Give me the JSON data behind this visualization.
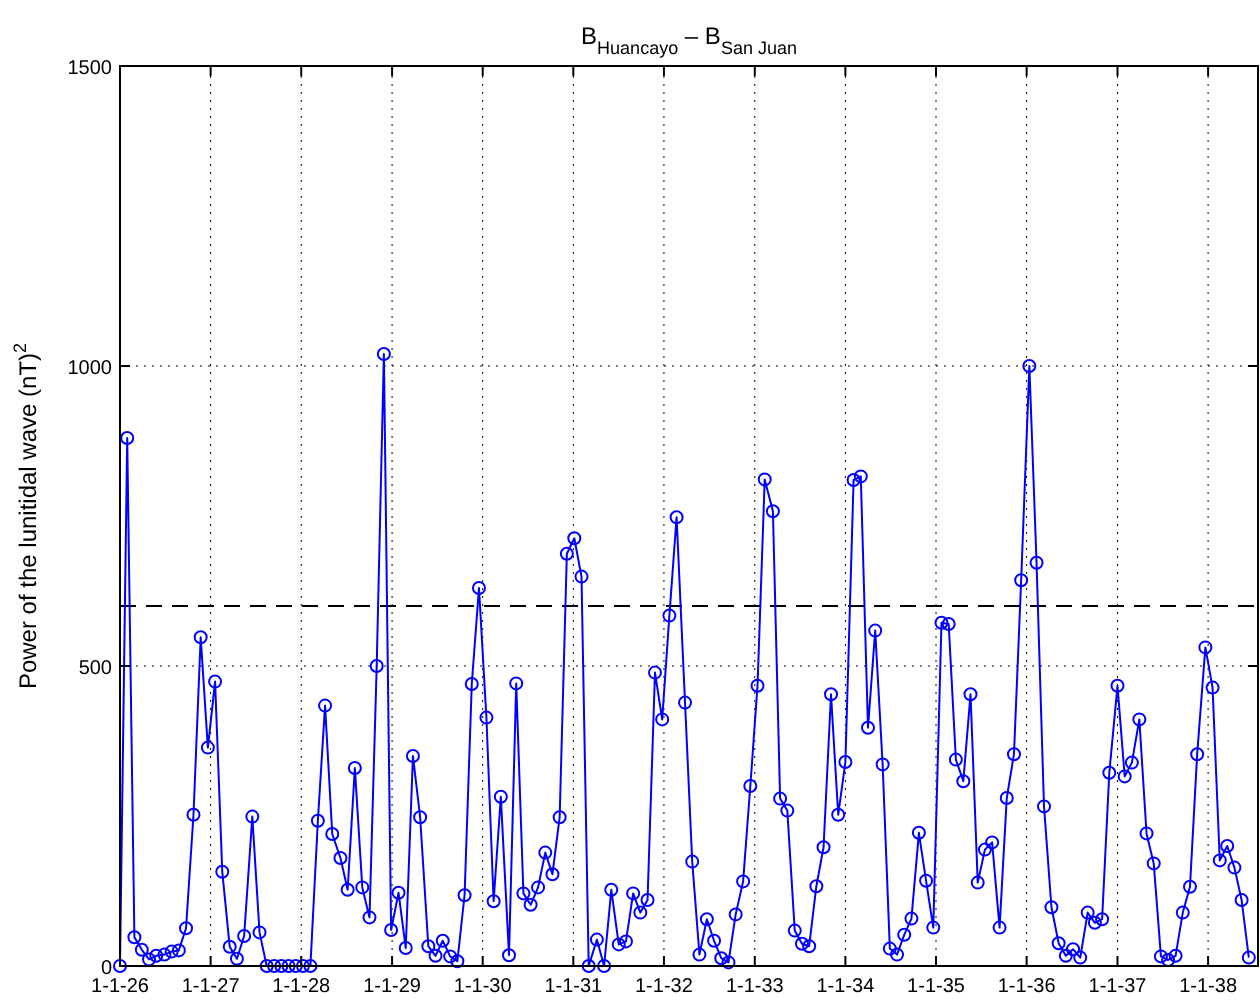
{
  "chart_data": {
    "type": "line",
    "title": "B$_{Huancayo}$ – B$_{San Juan}$",
    "ylabel": "Power of the lunitidal wave (nT)$^{2}$",
    "x": [
      "1926-01-01",
      "1926-01-30",
      "1926-02-28",
      "1926-03-30",
      "1926-04-28",
      "1926-05-27",
      "1926-06-29",
      "1926-07-28",
      "1926-08-26",
      "1926-09-24",
      "1926-10-24",
      "1926-11-22",
      "1926-12-21",
      "1927-01-19",
      "1927-02-17",
      "1927-03-19",
      "1927-04-17",
      "1927-05-16",
      "1927-06-18",
      "1927-07-17",
      "1927-08-15",
      "1927-09-14",
      "1927-10-13",
      "1927-11-11",
      "1927-12-10",
      "1928-01-08",
      "1928-02-07",
      "1928-03-08",
      "1928-04-06",
      "1928-05-05",
      "1928-06-07",
      "1928-07-06",
      "1928-08-04",
      "1928-09-03",
      "1928-10-02",
      "1928-10-31",
      "1928-11-29",
      "1928-12-28",
      "1929-01-27",
      "1929-02-25",
      "1929-03-26",
      "1929-04-24",
      "1929-05-27",
      "1929-06-25",
      "1929-07-24",
      "1929-08-23",
      "1929-09-21",
      "1929-10-20",
      "1929-11-18",
      "1929-12-17",
      "1930-01-16",
      "1930-02-14",
      "1930-03-15",
      "1930-04-17",
      "1930-05-16",
      "1930-06-14",
      "1930-07-13",
      "1930-08-12",
      "1930-09-10",
      "1930-10-09",
      "1930-11-07",
      "1930-12-06",
      "1931-01-05",
      "1931-02-03",
      "1931-03-04",
      "1931-04-06",
      "1931-05-05",
      "1931-06-03",
      "1931-07-03",
      "1931-08-01",
      "1931-08-30",
      "1931-09-28",
      "1931-10-27",
      "1931-11-26",
      "1931-12-25",
      "1932-01-23",
      "1932-02-21",
      "1932-03-26",
      "1932-04-24",
      "1932-05-23",
      "1932-06-22",
      "1932-07-21",
      "1932-08-19",
      "1932-09-17",
      "1932-10-16",
      "1932-11-15",
      "1932-12-14",
      "1933-01-12",
      "1933-02-10",
      "1933-03-15",
      "1933-04-13",
      "1933-05-12",
      "1933-06-11",
      "1933-07-10",
      "1933-08-08",
      "1933-09-06",
      "1933-10-05",
      "1933-11-04",
      "1933-12-03",
      "1934-01-01",
      "1934-02-03",
      "1934-03-04",
      "1934-04-02",
      "1934-05-01",
      "1934-05-31",
      "1934-06-29",
      "1934-07-28",
      "1934-08-26",
      "1934-09-24",
      "1934-10-24",
      "1934-11-22",
      "1934-12-21",
      "1935-01-23",
      "1935-02-21",
      "1935-03-22",
      "1935-04-21",
      "1935-05-20",
      "1935-06-18",
      "1935-07-17",
      "1935-08-15",
      "1935-09-14",
      "1935-10-13",
      "1935-11-11",
      "1935-12-10",
      "1936-01-12",
      "1936-02-10",
      "1936-03-11",
      "1936-04-10",
      "1936-05-09",
      "1936-06-07",
      "1936-07-06",
      "1936-08-04",
      "1936-09-03",
      "1936-10-02",
      "1936-10-31",
      "1936-11-29",
      "1937-01-01",
      "1937-01-30",
      "1937-02-28",
      "1937-03-30",
      "1937-04-28",
      "1937-05-27",
      "1937-06-25",
      "1937-07-24",
      "1937-08-23",
      "1937-09-21",
      "1937-10-20",
      "1937-11-18",
      "1937-12-21",
      "1938-01-19",
      "1938-02-17",
      "1938-03-19",
      "1938-04-17",
      "1938-05-16",
      "1938-06-14"
    ],
    "series": [
      {
        "color": "#0000ff",
        "values": [
          0,
          880,
          48,
          27,
          11,
          17,
          19,
          24,
          26,
          63,
          252,
          548,
          364,
          474,
          157,
          32,
          12,
          50,
          249,
          56,
          0,
          0,
          0,
          0,
          0,
          0,
          0,
          242,
          434,
          220,
          180,
          127,
          330,
          131,
          81,
          500,
          1020,
          60,
          122,
          30,
          350,
          248,
          33,
          17,
          42,
          16,
          8,
          118,
          470,
          630,
          414,
          108,
          282,
          18,
          471,
          121,
          102,
          131,
          189,
          153,
          248,
          687,
          713,
          649,
          0,
          44,
          0,
          127,
          36,
          41,
          121,
          89,
          110,
          489,
          411,
          584,
          748,
          439,
          174,
          19,
          78,
          42,
          13,
          6,
          86,
          141,
          300,
          467,
          811,
          758,
          279,
          259,
          59,
          37,
          33,
          133,
          198,
          453,
          252,
          340,
          810,
          816,
          397,
          559,
          336,
          29,
          19,
          52,
          79,
          222,
          142,
          64,
          572,
          570,
          344,
          308,
          453,
          139,
          194,
          206,
          64,
          280,
          353,
          643,
          1000,
          672,
          266,
          98,
          38,
          17,
          28,
          14,
          89,
          72,
          78,
          322,
          467,
          316,
          339,
          411,
          221,
          171,
          16,
          10,
          17,
          89,
          132,
          353,
          531,
          464,
          176,
          200,
          164,
          110,
          14
        ]
      }
    ],
    "xlim": [
      "1926-01-01",
      "1938-07-21"
    ],
    "xticks": [
      {
        "value": "1926-01-01",
        "label": "1-1-26"
      },
      {
        "value": "1927-01-01",
        "label": "1-1-27"
      },
      {
        "value": "1928-01-01",
        "label": "1-1-28"
      },
      {
        "value": "1929-01-01",
        "label": "1-1-29"
      },
      {
        "value": "1930-01-01",
        "label": "1-1-30"
      },
      {
        "value": "1931-01-01",
        "label": "1-1-31"
      },
      {
        "value": "1932-01-01",
        "label": "1-1-32"
      },
      {
        "value": "1933-01-01",
        "label": "1-1-33"
      },
      {
        "value": "1934-01-01",
        "label": "1-1-34"
      },
      {
        "value": "1935-01-01",
        "label": "1-1-35"
      },
      {
        "value": "1936-01-01",
        "label": "1-1-36"
      },
      {
        "value": "1937-01-01",
        "label": "1-1-37"
      },
      {
        "value": "1938-01-01",
        "label": "1-1-38"
      }
    ],
    "ylim": [
      0,
      1500
    ],
    "yticks": [
      0,
      500,
      1000,
      1500
    ],
    "ref_lines": [
      {
        "axis": "y",
        "value": 600,
        "color": "#000000",
        "line_style": "dashed"
      }
    ],
    "grid": true,
    "marker": "circle",
    "line_style": "solid"
  }
}
